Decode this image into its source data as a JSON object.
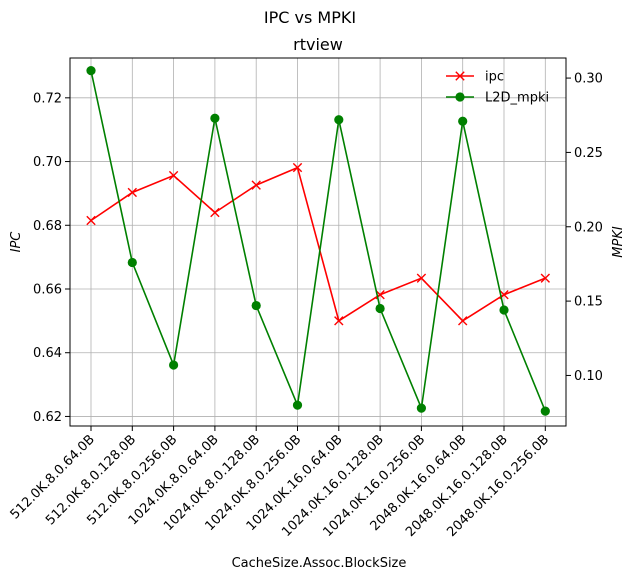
{
  "chart_data": {
    "type": "line",
    "title": "IPC vs MPKI",
    "subtitle": "rtview",
    "xlabel": "CacheSize.Assoc.BlockSize",
    "ylabel_left": "IPC",
    "ylabel_right": "MPKI",
    "categories": [
      "512.0K.8.0.64.0B",
      "512.0K.8.0.128.0B",
      "512.0K.8.0.256.0B",
      "1024.0K.8.0.64.0B",
      "1024.0K.8.0.128.0B",
      "1024.0K.8.0.256.0B",
      "1024.0K.16.0.64.0B",
      "1024.0K.16.0.128.0B",
      "1024.0K.16.0.256.0B",
      "2048.0K.16.0.64.0B",
      "2048.0K.16.0.128.0B",
      "2048.0K.16.0.256.0B"
    ],
    "ylim_left": [
      0.617,
      0.7325
    ],
    "ylim_right": [
      0.066,
      0.3135
    ],
    "yticks_left": [
      "0.62",
      "0.64",
      "0.66",
      "0.68",
      "0.70",
      "0.72"
    ],
    "yticks_right": [
      "0.10",
      "0.15",
      "0.20",
      "0.25",
      "0.30"
    ],
    "grid": true,
    "legend_position": "top-right",
    "series": [
      {
        "name": "ipc",
        "axis": "left",
        "color": "#ff0000",
        "marker": "x",
        "values": [
          0.6815,
          0.6903,
          0.6956,
          0.684,
          0.6926,
          0.6981,
          0.65,
          0.6582,
          0.6634,
          0.65,
          0.6582,
          0.6634
        ]
      },
      {
        "name": "L2D_mpki",
        "axis": "right",
        "color": "#008000",
        "marker": "o",
        "values": [
          0.305,
          0.176,
          0.107,
          0.273,
          0.147,
          0.08,
          0.272,
          0.145,
          0.078,
          0.271,
          0.144,
          0.076
        ]
      }
    ]
  }
}
